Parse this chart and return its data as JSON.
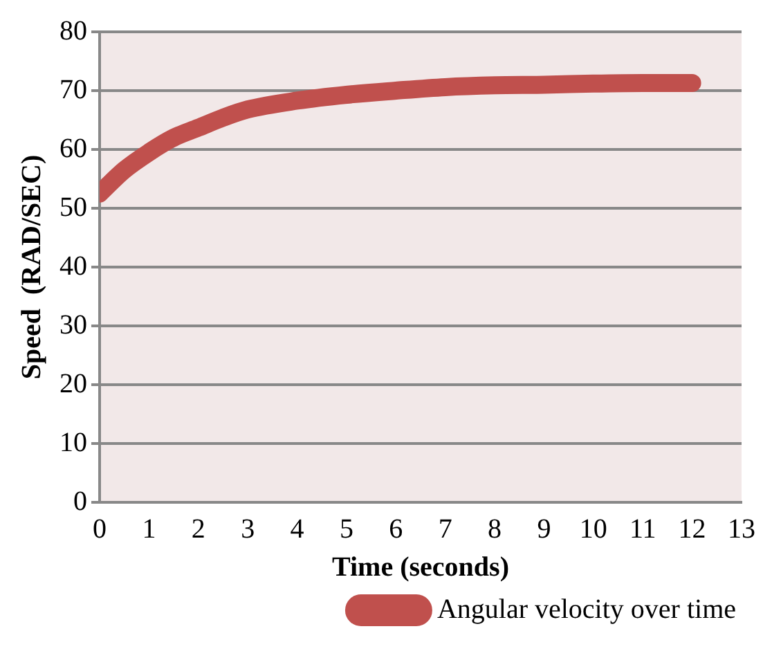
{
  "chart_data": {
    "type": "line",
    "xlabel": "Time (seconds)",
    "ylabel": "Speed  (RAD/SEC)",
    "x": [
      0,
      0.5,
      1,
      1.5,
      2,
      2.5,
      3,
      4,
      5,
      6,
      7,
      8,
      9,
      10,
      11,
      12
    ],
    "series": [
      {
        "name": "Angular velocity over time",
        "color": "#c0504d",
        "values": [
          52.5,
          56.5,
          59.5,
          62,
          63.7,
          65.4,
          66.8,
          68.3,
          69.3,
          70,
          70.6,
          70.9,
          71,
          71.2,
          71.3,
          71.3
        ]
      }
    ],
    "xlim": [
      0,
      13
    ],
    "xticks": [
      0,
      1,
      2,
      3,
      4,
      5,
      6,
      7,
      8,
      9,
      10,
      11,
      12,
      13
    ],
    "ylim": [
      0,
      80
    ],
    "yticks": [
      0,
      10,
      20,
      30,
      40,
      50,
      60,
      70,
      80
    ],
    "grid": "y",
    "legend": "bottom",
    "marker": "none",
    "line_style": "solid"
  }
}
